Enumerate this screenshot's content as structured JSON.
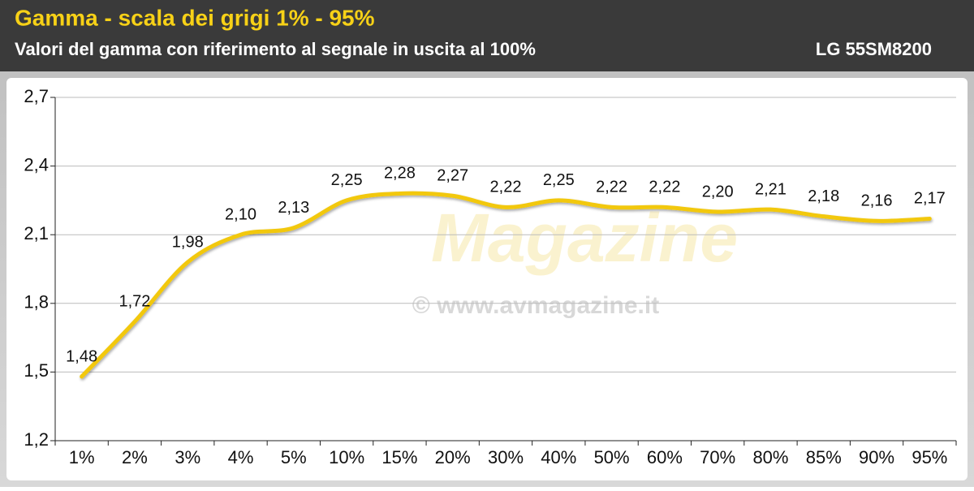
{
  "chart_data": {
    "type": "line",
    "title": "Gamma - scala dei grigi 1% - 95%",
    "subtitle": "Valori del gamma con riferimento al segnale in uscita al 100%",
    "device": "LG 55SM8200",
    "watermark": {
      "brand": "Magazine",
      "url": "© www.avmagazine.it"
    },
    "categories": [
      "1%",
      "2%",
      "3%",
      "4%",
      "5%",
      "10%",
      "15%",
      "20%",
      "30%",
      "40%",
      "50%",
      "60%",
      "70%",
      "80%",
      "85%",
      "90%",
      "95%"
    ],
    "series": [
      {
        "color": "#f2c811",
        "values": [
          1.48,
          1.72,
          1.98,
          2.1,
          2.13,
          2.25,
          2.28,
          2.27,
          2.22,
          2.25,
          2.22,
          2.22,
          2.2,
          2.21,
          2.18,
          2.16,
          2.17
        ],
        "value_labels": [
          "1,48",
          "1,72",
          "1,98",
          "2,10",
          "2,13",
          "2,25",
          "2,28",
          "2,27",
          "2,22",
          "2,25",
          "2,22",
          "2,22",
          "2,20",
          "2,21",
          "2,18",
          "2,16",
          "2,17"
        ]
      }
    ],
    "ylim": [
      1.2,
      2.7
    ],
    "yticks": [
      {
        "value": 1.2,
        "label": "1,2"
      },
      {
        "value": 1.5,
        "label": "1,5"
      },
      {
        "value": 1.8,
        "label": "1,8"
      },
      {
        "value": 2.1,
        "label": "2,1"
      },
      {
        "value": 2.4,
        "label": "2,4"
      },
      {
        "value": 2.7,
        "label": "2,7"
      }
    ],
    "grid": true
  }
}
